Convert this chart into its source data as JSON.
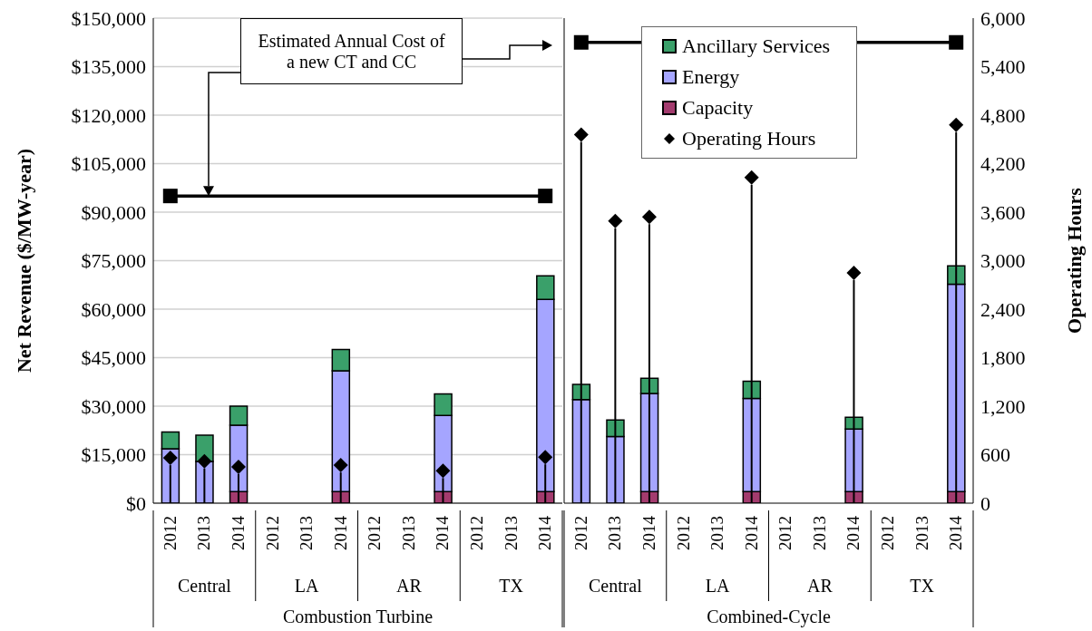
{
  "chart_data": [
    {
      "type": "bar",
      "stacked": true,
      "grid": "y",
      "xlabel": "Combustion Turbine",
      "ylabel": "Net Revenue ($/MW-year)",
      "annotations": [
        "Estimated Annual Cost of a new CT and CC",
        "Central",
        "LA",
        "AR",
        "TX"
      ],
      "categories": [
        "2012",
        "2013",
        "2014",
        "2012",
        "2013",
        "2014",
        "2012",
        "2013",
        "2014",
        "2012",
        "2013",
        "2014"
      ],
      "ylim": [
        0,
        150000
      ],
      "yticks": [
        {
          "value": 0,
          "label": "$0"
        },
        {
          "value": 15000,
          "label": "$15,000"
        },
        {
          "value": 30000,
          "label": "$30,000"
        },
        {
          "value": 45000,
          "label": "$45,000"
        },
        {
          "value": 60000,
          "label": "$60,000"
        },
        {
          "value": 75000,
          "label": "$75,000"
        },
        {
          "value": 90000,
          "label": "$90,000"
        },
        {
          "value": 105000,
          "label": "$105,000"
        },
        {
          "value": 120000,
          "label": "$120,000"
        },
        {
          "value": 135000,
          "label": "$135,000"
        },
        {
          "value": 150000,
          "label": "$150,000"
        }
      ],
      "y2lim": [
        0,
        6000
      ],
      "series": [
        {
          "color": "#a33b6e",
          "values": [
            null,
            null,
            3600,
            null,
            null,
            3600,
            null,
            null,
            3600,
            null,
            null,
            3600
          ]
        },
        {
          "color": "#a5a5ff",
          "values": [
            16800,
            12900,
            20500,
            null,
            null,
            37300,
            null,
            null,
            23500,
            null,
            null,
            59400
          ]
        },
        {
          "color": "#3aa06a",
          "values": [
            5200,
            8100,
            5900,
            null,
            null,
            6600,
            null,
            null,
            6700,
            null,
            null,
            7300
          ]
        },
        {
          "type": "line",
          "color": "#000000",
          "marker": "square",
          "values": [
            95000,
            null,
            null,
            null,
            null,
            null,
            null,
            null,
            null,
            null,
            null,
            95000
          ]
        },
        {
          "type": "lollipop",
          "color": "#000000",
          "marker": "diamond",
          "axis": "y2",
          "values": [
            560,
            520,
            450,
            null,
            null,
            470,
            null,
            null,
            400,
            null,
            null,
            570
          ]
        }
      ]
    },
    {
      "type": "bar",
      "stacked": true,
      "grid": "y",
      "legend": "top",
      "xlabel": "Combined-Cycle",
      "y2label": "Operating Hours",
      "annotations": [
        "Central",
        "LA",
        "AR",
        "TX"
      ],
      "categories": [
        "2012",
        "2013",
        "2014",
        "2012",
        "2013",
        "2014",
        "2012",
        "2013",
        "2014",
        "2012",
        "2013",
        "2014"
      ],
      "ylim": [
        0,
        150000
      ],
      "y2lim": [
        0,
        6000
      ],
      "y2ticks": [
        0,
        600,
        {
          "value": 1200,
          "label": "1,200"
        },
        {
          "value": 1800,
          "label": "1,800"
        },
        {
          "value": 2400,
          "label": "2,400"
        },
        {
          "value": 3000,
          "label": "3,000"
        },
        {
          "value": 3600,
          "label": "3,600"
        },
        {
          "value": 4200,
          "label": "4,200"
        },
        {
          "value": 4800,
          "label": "4,800"
        },
        {
          "value": 5400,
          "label": "5,400"
        },
        {
          "value": 6000,
          "label": "6,000"
        }
      ],
      "series": [
        {
          "name": "Capacity",
          "color": "#a33b6e",
          "values": [
            null,
            null,
            3600,
            null,
            null,
            3600,
            null,
            null,
            3600,
            null,
            null,
            3600
          ]
        },
        {
          "name": "Energy",
          "color": "#a5a5ff",
          "values": [
            32000,
            20600,
            30300,
            null,
            null,
            28800,
            null,
            null,
            19300,
            null,
            null,
            64100
          ]
        },
        {
          "name": "Ancillary Services",
          "color": "#3aa06a",
          "values": [
            4700,
            5100,
            4700,
            null,
            null,
            5300,
            null,
            null,
            3700,
            null,
            null,
            5700
          ]
        },
        {
          "type": "line",
          "color": "#000000",
          "marker": "square",
          "values": [
            142500,
            null,
            null,
            null,
            null,
            null,
            null,
            null,
            null,
            null,
            null,
            142500
          ]
        },
        {
          "type": "lollipop",
          "name": "Operating Hours",
          "color": "#000000",
          "marker": "diamond",
          "axis": "y2",
          "values": [
            4560,
            3490,
            3540,
            null,
            null,
            4030,
            null,
            null,
            2850,
            null,
            null,
            4680
          ]
        }
      ]
    }
  ]
}
